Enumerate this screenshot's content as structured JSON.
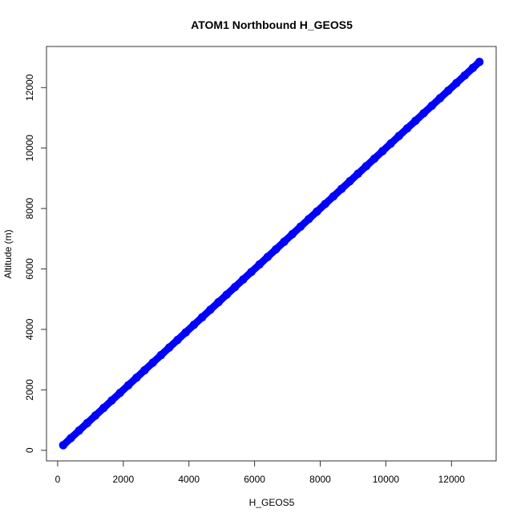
{
  "chart_data": {
    "type": "scatter",
    "title": "ATOM1 Northbound H_GEOS5",
    "xlabel": "H_GEOS5",
    "ylabel": "Altitude (m)",
    "xlim": [
      -340,
      13360
    ],
    "ylim": [
      -350,
      13360
    ],
    "xticks": [
      0,
      2000,
      4000,
      6000,
      8000,
      10000,
      12000
    ],
    "yticks": [
      0,
      2000,
      4000,
      6000,
      8000,
      10000,
      12000
    ],
    "grid": false,
    "point_color": "#0000ff",
    "x": [
      170,
      400,
      650,
      900,
      1150,
      1400,
      1650,
      1900,
      2150,
      2400,
      2650,
      2900,
      3150,
      3400,
      3650,
      3900,
      4150,
      4400,
      4650,
      4900,
      5150,
      5400,
      5650,
      5900,
      6150,
      6400,
      6650,
      6900,
      7150,
      7400,
      7650,
      7900,
      8150,
      8400,
      8650,
      8900,
      9150,
      9400,
      9650,
      9900,
      10150,
      10400,
      10650,
      10900,
      11150,
      11400,
      11650,
      11900,
      12150,
      12400,
      12650,
      12850
    ],
    "y": [
      170,
      400,
      650,
      900,
      1150,
      1400,
      1650,
      1900,
      2150,
      2400,
      2650,
      2900,
      3150,
      3400,
      3650,
      3900,
      4150,
      4400,
      4650,
      4900,
      5150,
      5400,
      5650,
      5900,
      6150,
      6400,
      6650,
      6900,
      7150,
      7400,
      7650,
      7900,
      8150,
      8400,
      8650,
      8900,
      9150,
      9400,
      9650,
      9900,
      10150,
      10400,
      10650,
      10900,
      11150,
      11400,
      11650,
      11900,
      12150,
      12400,
      12650,
      12850
    ]
  }
}
